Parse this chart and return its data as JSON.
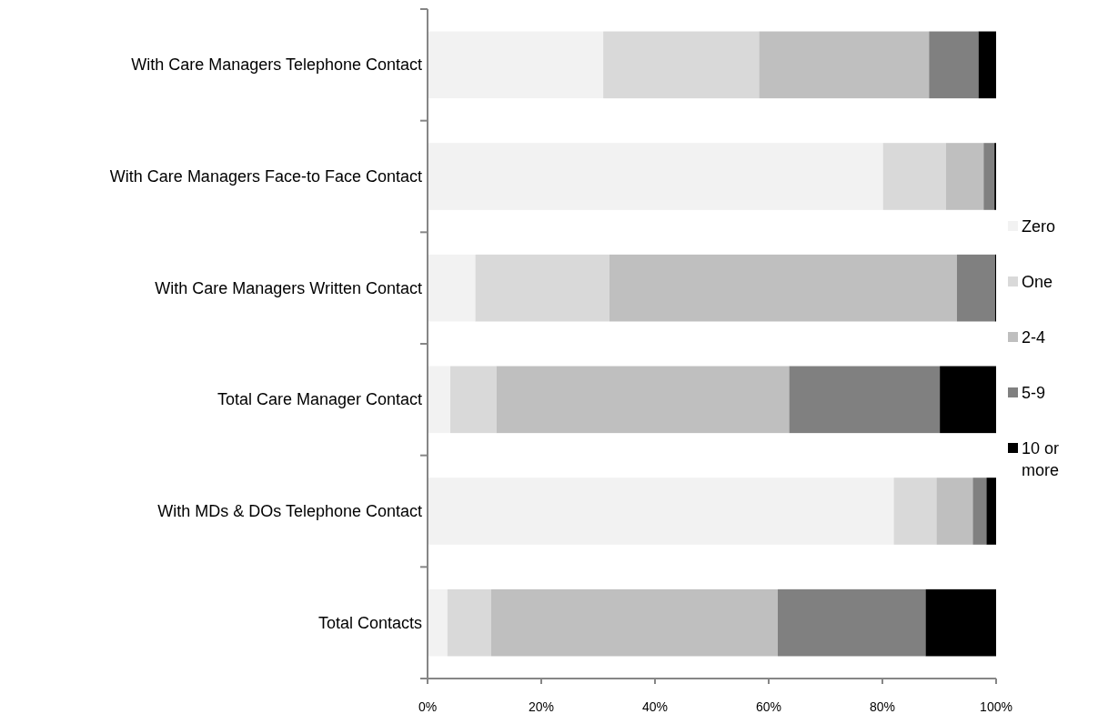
{
  "chart_data": {
    "type": "bar",
    "orientation": "horizontal",
    "stacked": true,
    "categories": [
      "With Care Managers Telephone Contact",
      "With Care Managers Face-to Face Contact",
      "With Care Managers Written Contact",
      "Total Care Manager Contact",
      "With MDs & DOs Telephone Contact",
      "Total Contacts"
    ],
    "series": [
      {
        "name": "Zero",
        "color": "#f2f2f2",
        "values": [
          30.9,
          80.1,
          8.4,
          4.0,
          82.0,
          3.5
        ]
      },
      {
        "name": "One",
        "color": "#d9d9d9",
        "values": [
          27.4,
          11.1,
          23.6,
          8.1,
          7.5,
          7.7
        ]
      },
      {
        "name": "2-4",
        "color": "#bfbfbf",
        "values": [
          29.9,
          6.6,
          61.1,
          51.5,
          6.4,
          50.4
        ]
      },
      {
        "name": "5-9",
        "color": "#808080",
        "values": [
          8.7,
          1.9,
          6.7,
          26.5,
          2.4,
          26.0
        ]
      },
      {
        "name": "10 or more",
        "color": "#000000",
        "values": [
          3.1,
          0.3,
          0.2,
          9.9,
          1.7,
          12.4
        ]
      }
    ],
    "xlim": [
      0,
      100
    ],
    "xticks": [
      {
        "value": 0,
        "label": "0%"
      },
      {
        "value": 20,
        "label": "20%"
      },
      {
        "value": 40,
        "label": "40%"
      },
      {
        "value": 60,
        "label": "60%"
      },
      {
        "value": 80,
        "label": "80%"
      },
      {
        "value": 100,
        "label": "100%"
      }
    ],
    "grid": false,
    "legend": "right"
  }
}
